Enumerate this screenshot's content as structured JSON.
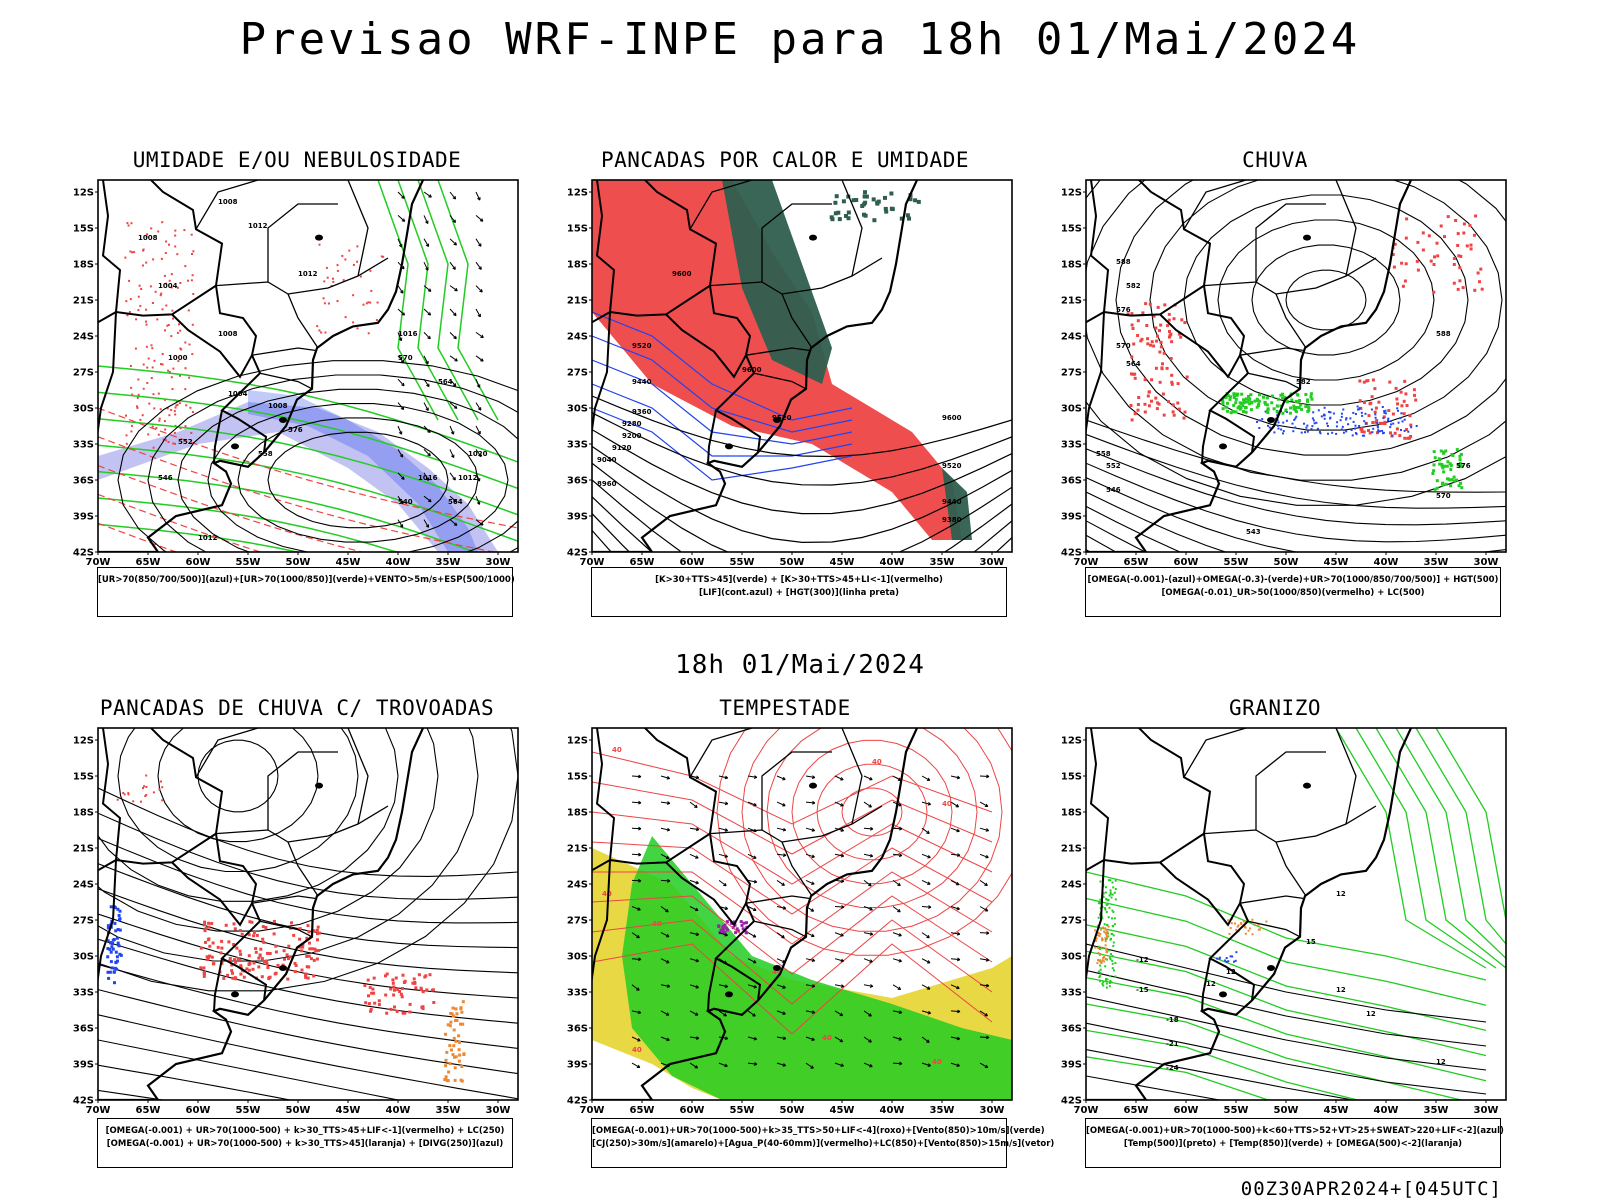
{
  "header": {
    "title": "Previsao WRF-INPE  para 18h 01/Mai/2024",
    "mid_title": "18h 01/Mai/2024",
    "footer": "00Z30APR2024+[045UTC]"
  },
  "axes": {
    "lat_labels": [
      "12S",
      "15S",
      "18S",
      "21S",
      "24S",
      "27S",
      "30S",
      "33S",
      "36S",
      "39S",
      "42S"
    ],
    "lon_labels": [
      "70W",
      "65W",
      "60W",
      "55W",
      "50W",
      "45W",
      "40W",
      "35W",
      "30W"
    ]
  },
  "colors": {
    "green": "#22cc22",
    "red": "#ee4444",
    "blue": "#2244ee",
    "lavender": "#aaaaee",
    "darkgreen": "#2e5e4e",
    "yellow": "#e6d63a",
    "orange": "#ee8833",
    "purple": "#9922aa"
  },
  "chart_data": [
    {
      "type": "map",
      "title": "UMIDADE E/OU NEBULOSIDADE",
      "legend": [
        "[UR>70(850/700/500)](azul)+[UR>70(1000/850)](verde)+VENTO>5m/s+ESP(500/1000)"
      ],
      "contour_labels": [
        "1008",
        "1012",
        "1008",
        "1012",
        "1004",
        "1008",
        "1000",
        "1016",
        "1004",
        "1008",
        "1020",
        "1012",
        "1016",
        "1012",
        "570",
        "576",
        "552",
        "546",
        "558",
        "564",
        "540",
        "564"
      ]
    },
    {
      "type": "map",
      "title": "PANCADAS POR CALOR E UMIDADE",
      "legend": [
        "[K>30+TTS>45](verde) + [K>30+TTS>45+LI<-1](vermelho)",
        "[LIF](cont.azul) + [HGT(300)](linha preta)"
      ],
      "contour_labels": [
        "9600",
        "9520",
        "9440",
        "9360",
        "9280",
        "9200",
        "9120",
        "9040",
        "8960",
        "9600",
        "9520",
        "9600",
        "9520",
        "9440",
        "9380"
      ]
    },
    {
      "type": "map",
      "title": "CHUVA",
      "legend": [
        "[OMEGA(-0.001)-(azul)+OMEGA(-0.3)-(verde)+UR>70(1000/850/700/500)] + HGT(500)",
        "[OMEGA(-0.01)_UR>50(1000/850)(vermelho) + LC(500)"
      ],
      "contour_labels": [
        "588",
        "582",
        "576",
        "570",
        "564",
        "558",
        "552",
        "546",
        "543",
        "570",
        "576",
        "582",
        "588"
      ]
    },
    {
      "type": "map",
      "title": "PANCADAS DE CHUVA C/ TROVOADAS",
      "legend": [
        "[OMEGA(-0.001) + UR>70(1000-500) + k>30_TTS>45+LIF<-1](vermelho) + LC(250)",
        "[OMEGA(-0.001) + UR>70(1000-500) + k>30_TTS>45](laranja) + [DIVG(250)](azul)"
      ],
      "contour_labels": []
    },
    {
      "type": "map",
      "title": "TEMPESTADE",
      "legend": [
        "[OMEGA(-0.001)+UR>70(1000-500)+k>35_TTS>50+LIF<-4](roxo)+[Vento(850)>10m/s](verde)",
        "[CJ(250)>30m/s](amarelo)+[Agua_P(40-60mm)](vermelho)+LC(850)+[Vento(850)>15m/s](vetor)"
      ],
      "contour_labels": [
        "40",
        "40",
        "40",
        "40",
        "40",
        "40",
        "40",
        "40",
        "40"
      ]
    },
    {
      "type": "map",
      "title": "GRANIZO",
      "legend": [
        "[OMEGA(-0.001)+UR>70(1000-500)+k<60+TTS>52+VT>25+SWEAT>220+LIF<-2](azul)",
        "[Temp(500)](preto) + [Temp(850)](verde) + [OMEGA(500)<-2](laranja)"
      ],
      "contour_labels": [
        "12",
        "12",
        "12",
        "12",
        "-12",
        "-15",
        "-18",
        "-21",
        "-24",
        "12",
        "15",
        "12"
      ]
    }
  ]
}
